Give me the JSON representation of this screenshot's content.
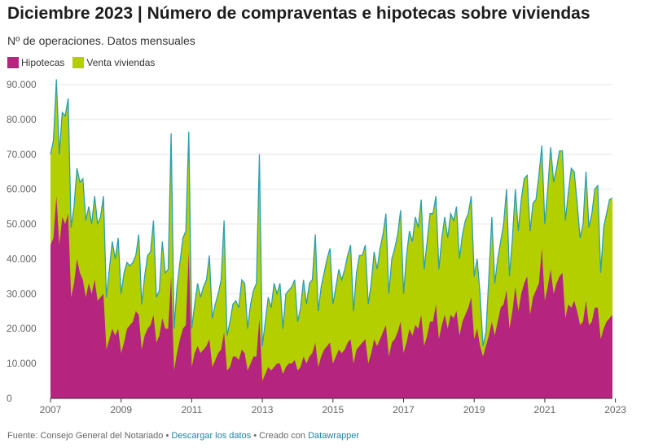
{
  "title": "Diciembre 2023 | Número de compraventas e hipotecas sobre viviendas",
  "subtitle": "Nº de operaciones. Datos mensuales",
  "legend": [
    {
      "label": "Hipotecas",
      "color": "#b5247f"
    },
    {
      "label": "Venta viviendas",
      "color": "#b3cf00"
    }
  ],
  "footer": {
    "source": "Fuente: Consejo General del Notariado",
    "sep": " • ",
    "download": "Descargar los datos",
    "created": "Creado con",
    "tool": "Datawrapper"
  },
  "chart_data": {
    "type": "area",
    "stacked": false,
    "x_start": "2007-01",
    "x_end": "2023-12",
    "frequency": "monthly",
    "x_ticks": [
      "2007",
      "2009",
      "2011",
      "2013",
      "2015",
      "2017",
      "2019",
      "2021",
      "2023"
    ],
    "y_ticks": [
      "0",
      "10.000",
      "20.000",
      "30.000",
      "40.000",
      "50.000",
      "60.000",
      "70.000",
      "80.000",
      "90.000"
    ],
    "ylim": [
      0,
      90000
    ],
    "grid": true,
    "legend_position": "top-left",
    "series": [
      {
        "name": "Venta viviendas",
        "color": "#b3cf00",
        "line_color": "#2c9fb0",
        "values": [
          70000,
          74000,
          91500,
          70000,
          82000,
          81000,
          86000,
          49000,
          55000,
          66000,
          62000,
          63000,
          51000,
          55000,
          50000,
          58000,
          50000,
          52000,
          58000,
          29000,
          37000,
          45000,
          40000,
          46000,
          30000,
          36000,
          39000,
          38000,
          39000,
          41000,
          47000,
          27000,
          35000,
          41000,
          42000,
          51000,
          29000,
          31000,
          45000,
          36000,
          37000,
          76000,
          20000,
          32000,
          39000,
          46000,
          48000,
          76500,
          20000,
          27000,
          33000,
          29000,
          32000,
          34000,
          41000,
          23000,
          27000,
          30000,
          34000,
          51000,
          18000,
          22000,
          27000,
          28000,
          26000,
          34000,
          33000,
          20000,
          27000,
          31000,
          33000,
          70000,
          15000,
          22000,
          29000,
          26000,
          33000,
          30000,
          33000,
          20000,
          30000,
          31000,
          32000,
          34000,
          22000,
          26000,
          34000,
          27000,
          33000,
          34000,
          47000,
          25000,
          32000,
          36000,
          40000,
          43000,
          27000,
          32000,
          37000,
          34000,
          37000,
          41000,
          44000,
          25000,
          36000,
          41000,
          41000,
          44000,
          27000,
          33000,
          42000,
          37000,
          43000,
          47000,
          53000,
          30000,
          40000,
          43000,
          47000,
          54000,
          30000,
          41000,
          48000,
          45000,
          52000,
          49000,
          57000,
          37000,
          45000,
          53000,
          53000,
          58000,
          37000,
          46000,
          52000,
          46000,
          53000,
          51000,
          55000,
          40000,
          47000,
          51000,
          53000,
          58000,
          35000,
          40000,
          30000,
          15000,
          19000,
          35000,
          52000,
          33000,
          40000,
          45000,
          50000,
          60000,
          35000,
          46000,
          60000,
          48000,
          57000,
          63000,
          64000,
          48000,
          56000,
          57000,
          64000,
          72500,
          50000,
          60000,
          72000,
          62000,
          66000,
          71000,
          71000,
          51000,
          59000,
          66000,
          65000,
          56000,
          46000,
          50000,
          65000,
          49000,
          53000,
          60000,
          61000,
          36000,
          49000,
          53000,
          57000,
          57500
        ]
      },
      {
        "name": "Hipotecas",
        "color": "#b5247f",
        "values": [
          44000,
          46000,
          58000,
          44000,
          52000,
          50000,
          53000,
          29000,
          33000,
          40000,
          36000,
          34000,
          29000,
          33000,
          30000,
          34000,
          28000,
          29000,
          30000,
          14000,
          17000,
          20000,
          18000,
          20000,
          13000,
          16000,
          20000,
          21000,
          22000,
          25000,
          24000,
          14000,
          18000,
          20000,
          21000,
          24000,
          16000,
          18000,
          23000,
          20000,
          20000,
          35000,
          8000,
          13000,
          17000,
          20000,
          21000,
          42000,
          9000,
          13000,
          15000,
          13000,
          14000,
          15000,
          17000,
          9000,
          11000,
          13000,
          14000,
          19000,
          8000,
          9000,
          12000,
          12000,
          11000,
          14000,
          13000,
          8000,
          10000,
          12000,
          12000,
          23000,
          5000,
          7000,
          9000,
          8000,
          9000,
          10000,
          10000,
          7000,
          9000,
          10000,
          10000,
          11000,
          8000,
          9000,
          12000,
          10000,
          12000,
          13000,
          16000,
          9000,
          12000,
          14000,
          15000,
          16000,
          10000,
          12000,
          14000,
          13000,
          14000,
          16000,
          17000,
          10000,
          14000,
          15000,
          16000,
          17000,
          10000,
          13000,
          17000,
          15000,
          17000,
          19000,
          21000,
          12000,
          16000,
          17000,
          19000,
          22000,
          13000,
          16000,
          20000,
          18000,
          21000,
          20000,
          24000,
          15000,
          18000,
          22000,
          22000,
          27000,
          17000,
          21000,
          24000,
          20000,
          24000,
          23000,
          25000,
          18000,
          22000,
          24000,
          26000,
          29000,
          17000,
          20000,
          15000,
          12000,
          15000,
          18000,
          22000,
          18000,
          22000,
          26000,
          27000,
          31000,
          20000,
          25000,
          32000,
          25000,
          30000,
          33000,
          35000,
          24000,
          29000,
          31000,
          33000,
          43000,
          28000,
          32000,
          37000,
          30000,
          33000,
          35000,
          36000,
          23000,
          27000,
          26000,
          28000,
          25000,
          21000,
          22000,
          28000,
          21000,
          22000,
          26000,
          26000,
          17000,
          20000,
          22000,
          23000,
          24000
        ]
      }
    ]
  }
}
